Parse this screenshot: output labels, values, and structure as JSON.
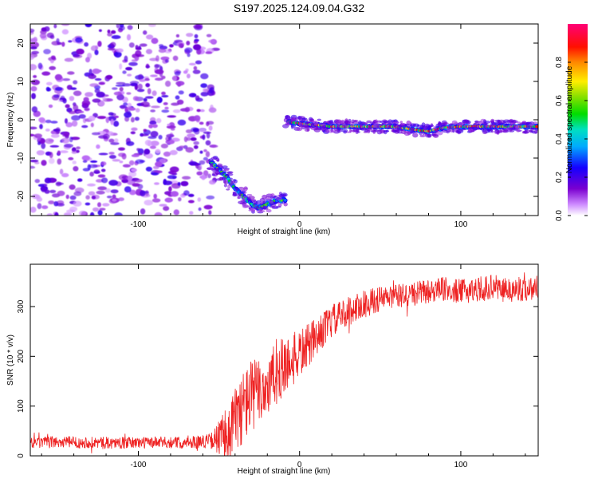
{
  "title": "S197.2025.124.09.04.G32",
  "colors": {
    "snr_line": "#ee2222",
    "spectrogram_background_noise": "#9a55dd",
    "frame": "#000000"
  },
  "chart_data": [
    {
      "type": "heatmap",
      "name": "spectrogram",
      "xlabel": "Height of straight line (km)",
      "ylabel": "Frequency (Hz)",
      "xlim": [
        -167,
        148
      ],
      "ylim": [
        -25,
        25
      ],
      "xticks": [
        -100,
        0,
        100
      ],
      "yticks": [
        -20,
        -10,
        0,
        10,
        20
      ],
      "colorbar": {
        "label": "Normalized spectral amplitude",
        "range": [
          0,
          1
        ],
        "ticks": [
          0.0,
          0.2,
          0.4,
          0.6,
          0.8
        ],
        "colormap": "rainbow (magenta-blue-cyan-green-yellow-orange-red-pink)"
      },
      "regions": [
        {
          "label": "noise",
          "x_range": [
            -167,
            -53
          ],
          "freq_range": [
            -25,
            25
          ],
          "amplitude": 0.15
        },
        {
          "label": "descending trace",
          "points": [
            [
              -55,
              -11
            ],
            [
              -50,
              -13
            ],
            [
              -45,
              -15
            ],
            [
              -40,
              -18
            ],
            [
              -35,
              -20
            ],
            [
              -30,
              -22
            ],
            [
              -25,
              -23
            ],
            [
              -20,
              -22
            ],
            [
              -14,
              -21
            ],
            [
              -8,
              -21
            ]
          ],
          "amplitude": 0.55
        },
        {
          "label": "signal line",
          "points": [
            [
              -7,
              -0.5
            ],
            [
              0,
              -1
            ],
            [
              10,
              -1.3
            ],
            [
              20,
              -1.8
            ],
            [
              40,
              -1.8
            ],
            [
              60,
              -1.8
            ],
            [
              70,
              -2.5
            ],
            [
              80,
              -3
            ],
            [
              90,
              -2
            ],
            [
              100,
              -1.8
            ],
            [
              120,
              -1.8
            ],
            [
              148,
              -1.8
            ]
          ],
          "amplitude": 0.85
        }
      ]
    },
    {
      "type": "line",
      "name": "snr",
      "xlabel": "Height of straight line (km)",
      "ylabel": "SNR (10 * v/v)",
      "xlim": [
        -167,
        148
      ],
      "ylim": [
        0,
        385
      ],
      "xticks": [
        -100,
        0,
        100
      ],
      "yticks": [
        0,
        100,
        200,
        300
      ],
      "series": [
        {
          "x": [
            -167,
            -150,
            -130,
            -110,
            -90,
            -70,
            -55,
            -45,
            -40,
            -35,
            -30,
            -25,
            -20,
            -15,
            -10,
            -5,
            0,
            5,
            10,
            15,
            20,
            25,
            30,
            40,
            50,
            60,
            70,
            80,
            90,
            100,
            110,
            120,
            130,
            140,
            148
          ],
          "y": [
            25,
            28,
            27,
            26,
            27,
            27,
            30,
            40,
            70,
            100,
            120,
            130,
            140,
            160,
            180,
            190,
            205,
            220,
            235,
            255,
            270,
            280,
            290,
            305,
            315,
            320,
            325,
            330,
            335,
            330,
            335,
            340,
            335,
            335,
            340
          ],
          "noise_amplitude": [
            12,
            12,
            12,
            12,
            12,
            12,
            15,
            60,
            70,
            75,
            75,
            70,
            70,
            65,
            60,
            55,
            50,
            45,
            40,
            35,
            35,
            30,
            30,
            28,
            26,
            25,
            25,
            25,
            25,
            25,
            25,
            25,
            25,
            25,
            25
          ]
        }
      ]
    }
  ]
}
